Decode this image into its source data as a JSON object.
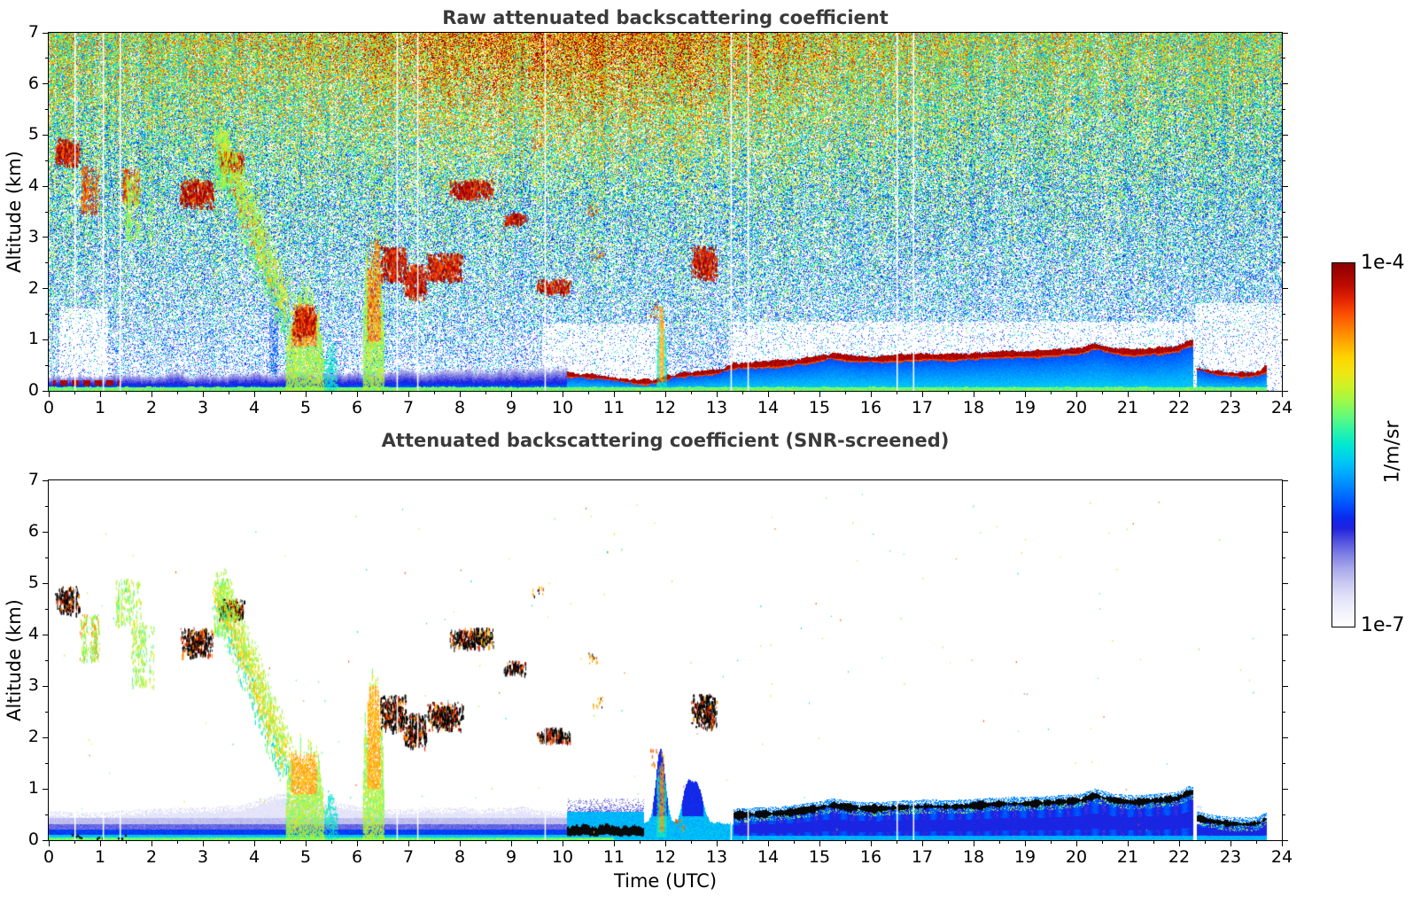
{
  "panels": [
    {
      "id": "raw",
      "title": "Raw attenuated backscattering coefficient",
      "ylabel": "Altitude (km)",
      "xlabel": "",
      "xlim": [
        0,
        24
      ],
      "ylim": [
        0,
        7
      ],
      "xticks": [
        0,
        1,
        2,
        3,
        4,
        5,
        6,
        7,
        8,
        9,
        10,
        11,
        12,
        13,
        14,
        15,
        16,
        17,
        18,
        19,
        20,
        21,
        22,
        23,
        24
      ],
      "yticks": [
        0,
        1,
        2,
        3,
        4,
        5,
        6,
        7
      ]
    },
    {
      "id": "screened",
      "title": "Attenuated backscattering coefficient (SNR-screened)",
      "ylabel": "Altitude (km)",
      "xlabel": "Time (UTC)",
      "xlim": [
        0,
        24
      ],
      "ylim": [
        0,
        7
      ],
      "xticks": [
        0,
        1,
        2,
        3,
        4,
        5,
        6,
        7,
        8,
        9,
        10,
        11,
        12,
        13,
        14,
        15,
        16,
        17,
        18,
        19,
        20,
        21,
        22,
        23,
        24
      ],
      "yticks": [
        0,
        1,
        2,
        3,
        4,
        5,
        6,
        7
      ]
    }
  ],
  "colorbar": {
    "max_label": "1e-4",
    "min_label": "1e-7",
    "units_label": "1/m/sr",
    "stops": [
      [
        0.0,
        "#ffffff"
      ],
      [
        0.04,
        "#f2f2fc"
      ],
      [
        0.08,
        "#e2e2f9"
      ],
      [
        0.12,
        "#c9c9f2"
      ],
      [
        0.16,
        "#a8a8ea"
      ],
      [
        0.2,
        "#7d7de4"
      ],
      [
        0.24,
        "#4b4bdf"
      ],
      [
        0.27,
        "#2222dd"
      ],
      [
        0.3,
        "#0a2aee"
      ],
      [
        0.34,
        "#0055ff"
      ],
      [
        0.38,
        "#0080ff"
      ],
      [
        0.42,
        "#00a8ff"
      ],
      [
        0.46,
        "#00ccf2"
      ],
      [
        0.5,
        "#00e8d0"
      ],
      [
        0.54,
        "#2cf4a8"
      ],
      [
        0.58,
        "#64fa78"
      ],
      [
        0.62,
        "#9cf948"
      ],
      [
        0.66,
        "#ccf228"
      ],
      [
        0.7,
        "#f0e612"
      ],
      [
        0.74,
        "#ffd400"
      ],
      [
        0.78,
        "#ffaa00"
      ],
      [
        0.82,
        "#ff7d00"
      ],
      [
        0.86,
        "#fb4f00"
      ],
      [
        0.9,
        "#e42400"
      ],
      [
        0.94,
        "#bc0a00"
      ],
      [
        1.0,
        "#8b0000"
      ]
    ]
  },
  "chart_data": {
    "type": "heatmap",
    "x_units": "hours UTC",
    "y_units": "km",
    "value_units": "1/m/sr",
    "value_range": [
      "1e-7",
      "1e-4"
    ],
    "log_scale": true,
    "data_end_hour": 23.7,
    "gap_hours": [
      0.5,
      1.05,
      1.38,
      6.77,
      7.17,
      9.65,
      13.27,
      13.6,
      16.5,
      16.82
    ],
    "aerosol_top_line_km": [
      [
        10.1,
        0.3
      ],
      [
        10.6,
        0.27
      ],
      [
        11.0,
        0.22
      ],
      [
        11.45,
        0.16
      ],
      [
        11.8,
        0.17
      ],
      [
        12.0,
        0.24
      ],
      [
        12.3,
        0.3
      ],
      [
        12.7,
        0.33
      ],
      [
        13.05,
        0.37
      ],
      [
        13.3,
        0.47
      ],
      [
        13.9,
        0.5
      ],
      [
        14.4,
        0.53
      ],
      [
        14.9,
        0.6
      ],
      [
        15.25,
        0.67
      ],
      [
        15.6,
        0.62
      ],
      [
        16.1,
        0.6
      ],
      [
        16.6,
        0.63
      ],
      [
        17.1,
        0.65
      ],
      [
        17.6,
        0.64
      ],
      [
        18.1,
        0.67
      ],
      [
        18.6,
        0.7
      ],
      [
        19.1,
        0.7
      ],
      [
        19.6,
        0.73
      ],
      [
        20.1,
        0.77
      ],
      [
        20.35,
        0.86
      ],
      [
        20.7,
        0.77
      ],
      [
        21.1,
        0.73
      ],
      [
        21.6,
        0.77
      ],
      [
        21.95,
        0.8
      ],
      [
        22.15,
        0.9
      ],
      [
        22.25,
        0.92
      ]
    ],
    "evening_shallow_line_km": [
      [
        22.35,
        0.42
      ],
      [
        22.6,
        0.36
      ],
      [
        23.0,
        0.31
      ],
      [
        23.35,
        0.3
      ],
      [
        23.55,
        0.33
      ],
      [
        23.7,
        0.42
      ]
    ],
    "morning_surface_dashes": {
      "t": [
        0.08,
        1.38
      ],
      "z": [
        0.1,
        0.2
      ]
    },
    "haze_top_km": [
      [
        0,
        0.55
      ],
      [
        1,
        0.52
      ],
      [
        2,
        0.6
      ],
      [
        3,
        0.62
      ],
      [
        3.8,
        0.68
      ],
      [
        4.3,
        0.85
      ],
      [
        4.6,
        0.9
      ],
      [
        5.4,
        0.75
      ],
      [
        6.0,
        0.66
      ],
      [
        6.6,
        0.6
      ],
      [
        7.5,
        0.62
      ],
      [
        8.5,
        0.6
      ],
      [
        9.3,
        0.62
      ],
      [
        10.0,
        0.55
      ]
    ],
    "screened_bump_tops": [
      [
        11.9,
        1.45,
        0.09
      ],
      [
        12.42,
        0.7,
        0.09
      ],
      [
        12.62,
        0.75,
        0.1
      ]
    ],
    "noise": {
      "base_v": 0.3,
      "alt_gain": 0.34,
      "spread": 0.52,
      "density_base": 0.32,
      "density_alt_gain": 0.6,
      "low_alt_cool": 0.08,
      "late_cool": 0.05,
      "midday_hot": {
        "center_hour": 10.3,
        "sigma_h": 3.6,
        "alt_from": 3.5,
        "alt_to": 6.8,
        "boost": 0.2
      },
      "white_pockets": [
        {
          "t": [
            0.2,
            1.15
          ],
          "z": [
            0,
            1.6
          ]
        },
        {
          "t": [
            9.6,
            12.0
          ],
          "z": [
            0,
            1.3
          ]
        },
        {
          "t": [
            13.3,
            22.3
          ],
          "z": [
            0,
            1.35
          ],
          "above_line": true
        },
        {
          "t": [
            22.3,
            24.0
          ],
          "z": [
            0,
            1.7
          ],
          "above_line": true
        }
      ],
      "dark_streak": {
        "t": [
          4.28,
          4.46
        ],
        "z": [
          0,
          2.2
        ]
      }
    },
    "features": [
      {
        "kind": "cloud",
        "t": [
          0.12,
          0.6
        ],
        "z": [
          4.4,
          4.95
        ],
        "panels": "both"
      },
      {
        "kind": "streaks",
        "t": [
          0.62,
          0.95
        ],
        "z": [
          3.5,
          4.4
        ],
        "panels": "both"
      },
      {
        "kind": "streaks",
        "t": [
          1.35,
          1.75
        ],
        "z": [
          3.7,
          4.35
        ],
        "panels": "raw"
      },
      {
        "kind": "green-streaks",
        "t": [
          1.35,
          1.75
        ],
        "z": [
          4.2,
          5.1
        ],
        "panels": "screened"
      },
      {
        "kind": "green-streaks",
        "t": [
          1.5,
          2.0
        ],
        "z": [
          3.0,
          4.25
        ],
        "panels": "both"
      },
      {
        "kind": "cloud",
        "t": [
          2.55,
          3.2
        ],
        "z": [
          3.6,
          4.15
        ],
        "panels": "both"
      },
      {
        "kind": "green-streaks",
        "t": [
          3.25,
          3.5
        ],
        "z": [
          4.0,
          5.1
        ],
        "panels": "both"
      },
      {
        "kind": "cloud",
        "t": [
          3.3,
          3.8
        ],
        "z": [
          4.3,
          4.7
        ],
        "panels": "both"
      },
      {
        "kind": "slant",
        "from": [
          3.32,
          4.85
        ],
        "to": [
          4.65,
          1.5
        ],
        "panels": "both"
      },
      {
        "kind": "column",
        "t": [
          4.6,
          5.35
        ],
        "z": [
          0.0,
          2.1
        ],
        "core_t": [
          4.72,
          5.22
        ],
        "core_z": [
          0.9,
          1.7
        ],
        "panels": "both"
      },
      {
        "kind": "cloud",
        "t": [
          4.75,
          5.2
        ],
        "z": [
          1.05,
          1.65
        ],
        "panels": "raw"
      },
      {
        "kind": "column-cyan",
        "t": [
          5.35,
          5.62
        ],
        "z": [
          0.0,
          1.0
        ],
        "panels": "both"
      },
      {
        "kind": "column",
        "t": [
          6.1,
          6.52
        ],
        "z": [
          0.0,
          3.3
        ],
        "core_t": [
          6.2,
          6.45
        ],
        "core_z": [
          1.0,
          3.0
        ],
        "panels": "both"
      },
      {
        "kind": "cloud",
        "t": [
          6.45,
          6.95
        ],
        "z": [
          2.15,
          2.85
        ],
        "panels": "both"
      },
      {
        "kind": "cloud",
        "t": [
          6.9,
          7.35
        ],
        "z": [
          1.8,
          2.5
        ],
        "panels": "both"
      },
      {
        "kind": "cloud",
        "t": [
          7.35,
          8.05
        ],
        "z": [
          2.15,
          2.7
        ],
        "panels": "both"
      },
      {
        "kind": "cloud",
        "t": [
          7.8,
          8.65
        ],
        "z": [
          3.75,
          4.15
        ],
        "panels": "both"
      },
      {
        "kind": "speck-yellow",
        "t": [
          8.35,
          8.62
        ],
        "z": [
          3.8,
          4.1
        ],
        "panels": "screened"
      },
      {
        "kind": "cloud",
        "t": [
          8.85,
          9.3
        ],
        "z": [
          3.25,
          3.5
        ],
        "panels": "both"
      },
      {
        "kind": "speck",
        "t": [
          9.4,
          9.62
        ],
        "z": [
          4.75,
          4.95
        ],
        "panels": "both"
      },
      {
        "kind": "cloud",
        "t": [
          9.5,
          10.15
        ],
        "z": [
          1.9,
          2.2
        ],
        "panels": "both"
      },
      {
        "kind": "speck",
        "t": [
          10.55,
          10.8
        ],
        "z": [
          2.6,
          2.8
        ],
        "panels": "both"
      },
      {
        "kind": "speck",
        "t": [
          10.5,
          10.68
        ],
        "z": [
          3.45,
          3.65
        ],
        "panels": "both"
      },
      {
        "kind": "column-narrow",
        "t": [
          11.82,
          12.02
        ],
        "z": [
          0.1,
          1.75
        ],
        "panels": "both"
      },
      {
        "kind": "speck-orange",
        "t": [
          11.7,
          11.85
        ],
        "z": [
          1.45,
          1.78
        ],
        "panels": "both"
      },
      {
        "kind": "speck-orange",
        "t": [
          12.18,
          12.38
        ],
        "z": [
          0.2,
          0.45
        ],
        "panels": "screened"
      },
      {
        "kind": "cloud",
        "t": [
          12.5,
          13.0
        ],
        "z": [
          2.2,
          2.85
        ],
        "panels": "both"
      },
      {
        "kind": "ground-specks",
        "t": [
          0.45,
          1.5
        ],
        "z": [
          0.03,
          0.12
        ],
        "panels": "screened"
      }
    ]
  }
}
